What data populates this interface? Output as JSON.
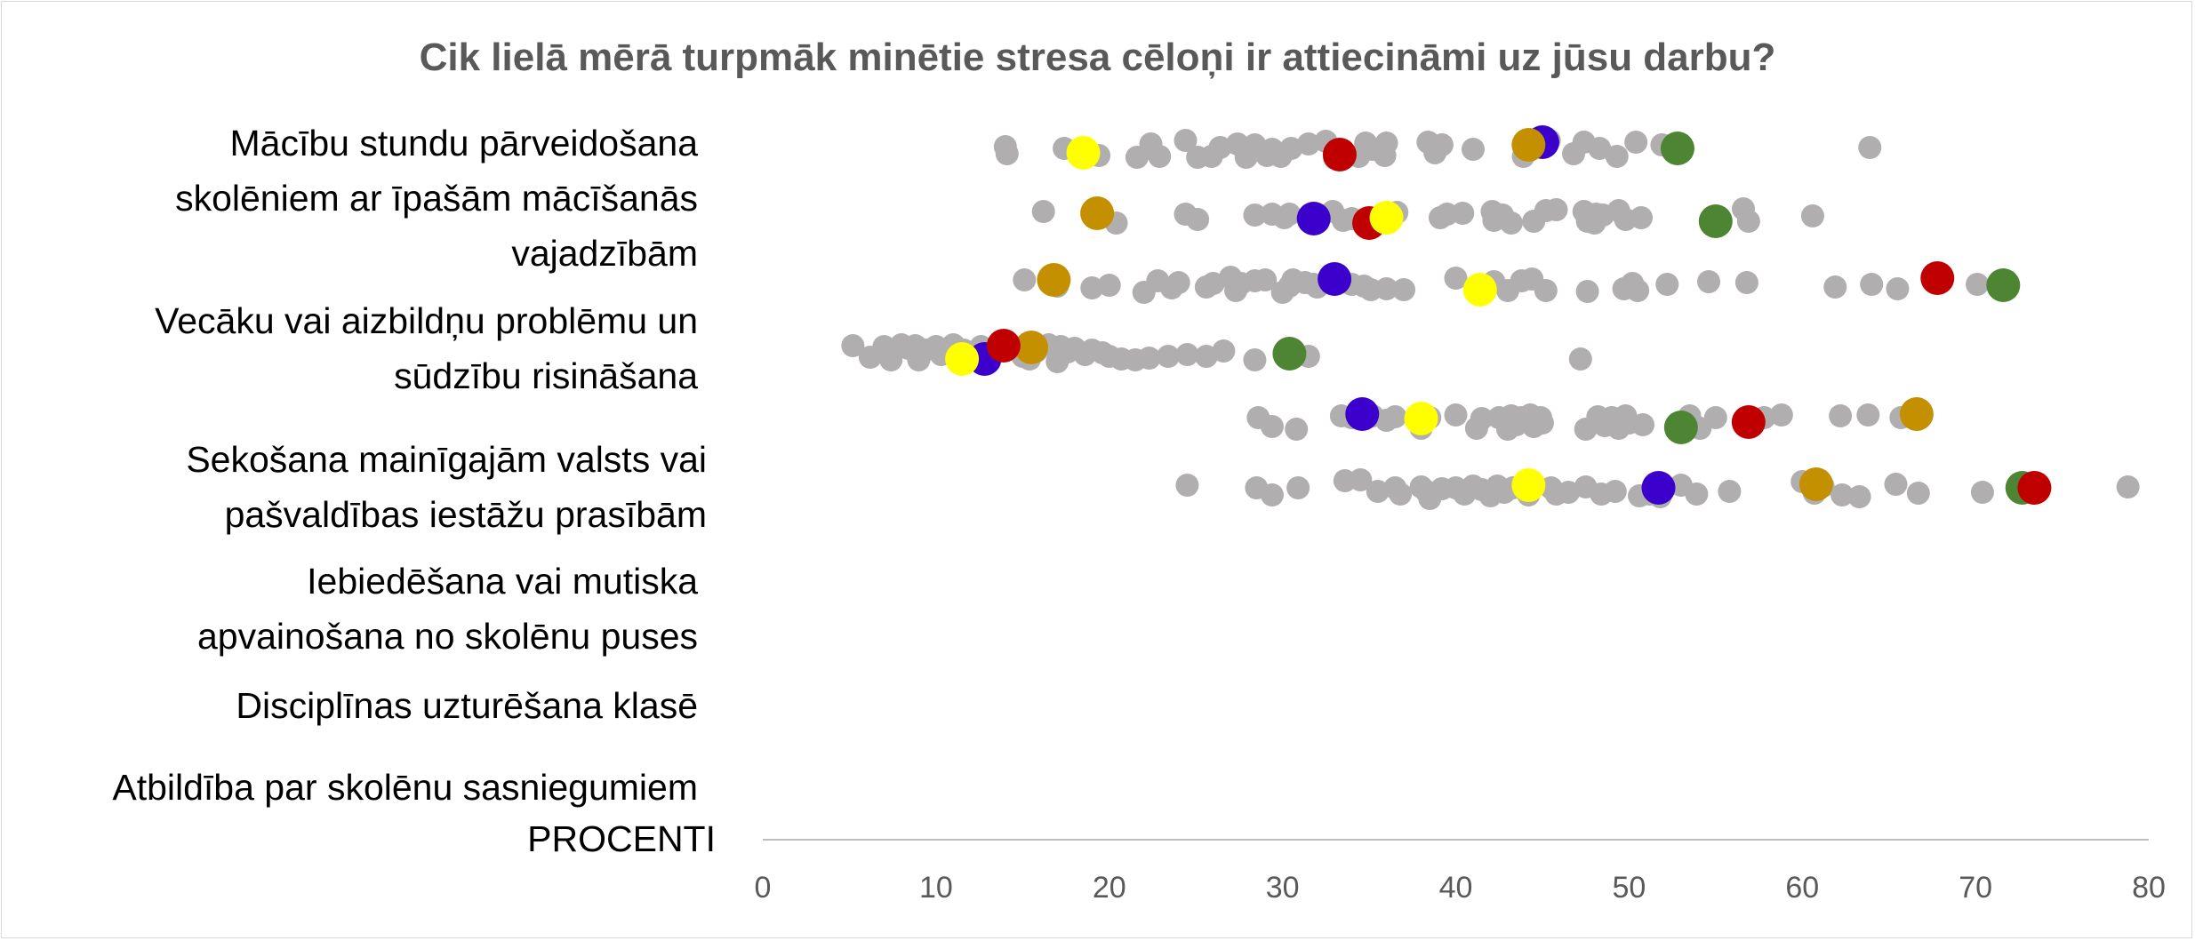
{
  "chart_data": {
    "type": "scatter",
    "title": "Cik lielā mērā turpmāk minētie stresa cēloņi ir attiecināmi uz jūsu darbu?",
    "xlabel": "PROCENTI",
    "xlim": [
      0,
      80
    ],
    "xticks": [
      "0",
      "10",
      "20",
      "30",
      "40",
      "50",
      "60",
      "70",
      "80"
    ],
    "grid": false,
    "legend": "none",
    "categories": [
      [
        "Mācību stundu pārveidošana",
        "skolēniem ar īpašām mācīšanās",
        "vajadzībām"
      ],
      [
        "Vecāku vai aizbildņu problēmu un",
        "sūdzību risināšana"
      ],
      [
        "Sekošana mainīgajām valsts vai",
        "pašvaldības iestāžu prasībām"
      ],
      [
        "Iebiedēšana vai mutiska",
        "apvainošana no skolēnu puses"
      ],
      [
        "Disciplīnas uzturēšana klasē"
      ],
      [
        "Atbildība par skolēnu sasniegumiem"
      ]
    ],
    "colors": {
      "other": "#b0aeae",
      "yellow": "#ffff00",
      "red": "#c00000",
      "blue": "#3c00cc",
      "gold": "#c49000",
      "green": "#4e8533"
    },
    "other_points": [
      [
        [
          14.0,
          165
        ],
        [
          14.1,
          173
        ],
        [
          17.4,
          167
        ],
        [
          19.4,
          175
        ],
        [
          21.6,
          177
        ],
        [
          22.4,
          162
        ],
        [
          22.9,
          176
        ],
        [
          24.4,
          158
        ],
        [
          25.1,
          177
        ],
        [
          25.9,
          176
        ],
        [
          26.4,
          166
        ],
        [
          27.4,
          162
        ],
        [
          27.9,
          177
        ],
        [
          28.4,
          163
        ],
        [
          29.1,
          175
        ],
        [
          29.4,
          168
        ],
        [
          29.9,
          176
        ],
        [
          30.5,
          167
        ],
        [
          31.5,
          162
        ],
        [
          32.5,
          159
        ],
        [
          33.0,
          178
        ],
        [
          34.4,
          176
        ],
        [
          34.8,
          161
        ],
        [
          35.2,
          168
        ],
        [
          35.9,
          175
        ],
        [
          36.0,
          161
        ],
        [
          38.4,
          160
        ],
        [
          38.8,
          172
        ],
        [
          39.2,
          163
        ],
        [
          41.0,
          168
        ],
        [
          43.9,
          176
        ],
        [
          45.4,
          158
        ],
        [
          46.8,
          173
        ],
        [
          47.4,
          160
        ],
        [
          48.3,
          167
        ],
        [
          49.3,
          176
        ],
        [
          50.4,
          160
        ],
        [
          51.9,
          163
        ],
        [
          63.9,
          166
        ]
      ],
      [
        [
          16.2,
          238
        ],
        [
          20.4,
          251
        ],
        [
          24.4,
          241
        ],
        [
          25.1,
          247
        ],
        [
          28.4,
          242
        ],
        [
          29.4,
          241
        ],
        [
          30.1,
          245
        ],
        [
          30.4,
          241
        ],
        [
          32.9,
          238
        ],
        [
          33.5,
          248
        ],
        [
          34.0,
          246
        ],
        [
          36.6,
          239
        ],
        [
          39.1,
          245
        ],
        [
          39.5,
          241
        ],
        [
          40.4,
          240
        ],
        [
          42.1,
          238
        ],
        [
          42.2,
          248
        ],
        [
          42.7,
          242
        ],
        [
          43.2,
          251
        ],
        [
          44.5,
          249
        ],
        [
          45.2,
          237
        ],
        [
          45.8,
          236
        ],
        [
          47.4,
          238
        ],
        [
          47.6,
          249
        ],
        [
          48.0,
          251
        ],
        [
          48.1,
          241
        ],
        [
          48.5,
          242
        ],
        [
          49.4,
          237
        ],
        [
          49.8,
          247
        ],
        [
          50.7,
          245
        ],
        [
          56.6,
          235
        ],
        [
          56.9,
          249
        ],
        [
          60.6,
          243
        ]
      ],
      [
        [
          15.1,
          315
        ],
        [
          17.0,
          322
        ],
        [
          19.0,
          324
        ],
        [
          20.0,
          321
        ],
        [
          22.0,
          329
        ],
        [
          22.8,
          316
        ],
        [
          23.6,
          324
        ],
        [
          24.0,
          318
        ],
        [
          25.6,
          323
        ],
        [
          26.0,
          319
        ],
        [
          27.0,
          312
        ],
        [
          27.3,
          327
        ],
        [
          27.6,
          319
        ],
        [
          28.4,
          316
        ],
        [
          29.0,
          315
        ],
        [
          30.0,
          329
        ],
        [
          30.4,
          322
        ],
        [
          30.6,
          315
        ],
        [
          31.3,
          318
        ],
        [
          31.8,
          320
        ],
        [
          32.0,
          323
        ],
        [
          34.0,
          320
        ],
        [
          34.7,
          322
        ],
        [
          35.1,
          326
        ],
        [
          36.0,
          325
        ],
        [
          37.0,
          326
        ],
        [
          40.0,
          313
        ],
        [
          42.2,
          317
        ],
        [
          43.0,
          327
        ],
        [
          43.8,
          316
        ],
        [
          44.4,
          314
        ],
        [
          45.2,
          327
        ],
        [
          47.6,
          328
        ],
        [
          49.7,
          325
        ],
        [
          50.2,
          319
        ],
        [
          50.5,
          327
        ],
        [
          52.2,
          320
        ],
        [
          54.6,
          317
        ],
        [
          56.8,
          318
        ],
        [
          61.9,
          323
        ],
        [
          64.0,
          320
        ],
        [
          65.5,
          325
        ],
        [
          70.1,
          320
        ]
      ],
      [
        [
          5.2,
          389
        ],
        [
          6.2,
          402
        ],
        [
          7.0,
          390
        ],
        [
          7.4,
          405
        ],
        [
          8.0,
          388
        ],
        [
          8.4,
          392
        ],
        [
          8.8,
          389
        ],
        [
          9.4,
          394
        ],
        [
          10.0,
          390
        ],
        [
          10.3,
          399
        ],
        [
          11.0,
          388
        ],
        [
          11.6,
          394
        ],
        [
          12.2,
          397
        ],
        [
          12.6,
          390
        ],
        [
          13.2,
          395
        ],
        [
          13.8,
          387
        ],
        [
          14.4,
          390
        ],
        [
          15.0,
          401
        ],
        [
          15.8,
          395
        ],
        [
          16.5,
          388
        ],
        [
          17.2,
          390
        ],
        [
          17.6,
          396
        ],
        [
          18.0,
          392
        ],
        [
          18.6,
          399
        ],
        [
          19.0,
          394
        ],
        [
          19.6,
          397
        ],
        [
          20.0,
          401
        ],
        [
          20.7,
          404
        ],
        [
          21.5,
          405
        ],
        [
          22.3,
          403
        ],
        [
          23.4,
          401
        ],
        [
          24.5,
          399
        ],
        [
          25.6,
          401
        ],
        [
          26.6,
          395
        ],
        [
          28.4,
          405
        ],
        [
          31.5,
          401
        ],
        [
          47.2,
          404
        ],
        [
          17.0,
          407
        ],
        [
          15.4,
          404
        ],
        [
          9.0,
          405
        ]
      ],
      [
        [
          28.6,
          470
        ],
        [
          29.4,
          480
        ],
        [
          30.8,
          483
        ],
        [
          33.4,
          468
        ],
        [
          34.0,
          470
        ],
        [
          35.2,
          468
        ],
        [
          36.0,
          473
        ],
        [
          36.5,
          469
        ],
        [
          38.0,
          482
        ],
        [
          38.5,
          470
        ],
        [
          40.0,
          467
        ],
        [
          41.2,
          482
        ],
        [
          41.5,
          471
        ],
        [
          42.5,
          470
        ],
        [
          43.0,
          483
        ],
        [
          43.2,
          468
        ],
        [
          43.5,
          478
        ],
        [
          43.8,
          470
        ],
        [
          44.3,
          467
        ],
        [
          44.5,
          480
        ],
        [
          44.9,
          470
        ],
        [
          45.0,
          476
        ],
        [
          47.5,
          483
        ],
        [
          48.2,
          469
        ],
        [
          48.6,
          479
        ],
        [
          49.0,
          470
        ],
        [
          49.4,
          482
        ],
        [
          49.8,
          468
        ],
        [
          50.0,
          476
        ],
        [
          50.8,
          478
        ],
        [
          53.5,
          468
        ],
        [
          54.1,
          482
        ],
        [
          55.0,
          470
        ],
        [
          57.8,
          470
        ],
        [
          58.8,
          467
        ],
        [
          62.2,
          468
        ],
        [
          63.8,
          467
        ],
        [
          65.7,
          470
        ]
      ],
      [
        [
          24.5,
          546
        ],
        [
          28.5,
          549
        ],
        [
          29.4,
          557
        ],
        [
          30.9,
          549
        ],
        [
          33.6,
          541
        ],
        [
          34.5,
          540
        ],
        [
          35.5,
          553
        ],
        [
          36.5,
          549
        ],
        [
          36.8,
          556
        ],
        [
          38.0,
          548
        ],
        [
          38.3,
          553
        ],
        [
          38.5,
          561
        ],
        [
          39.2,
          550
        ],
        [
          40.0,
          549
        ],
        [
          40.5,
          556
        ],
        [
          41.0,
          547
        ],
        [
          41.5,
          551
        ],
        [
          42.0,
          558
        ],
        [
          42.4,
          547
        ],
        [
          42.8,
          554
        ],
        [
          43.3,
          549
        ],
        [
          43.9,
          549
        ],
        [
          44.2,
          557
        ],
        [
          45.5,
          549
        ],
        [
          45.8,
          556
        ],
        [
          46.5,
          554
        ],
        [
          47.5,
          548
        ],
        [
          48.4,
          556
        ],
        [
          49.2,
          553
        ],
        [
          50.6,
          558
        ],
        [
          51.2,
          556
        ],
        [
          51.8,
          559
        ],
        [
          53.0,
          546
        ],
        [
          53.9,
          556
        ],
        [
          55.8,
          553
        ],
        [
          60.0,
          542
        ],
        [
          60.7,
          555
        ],
        [
          61.2,
          547
        ],
        [
          62.3,
          557
        ],
        [
          63.3,
          559
        ],
        [
          65.4,
          545
        ],
        [
          66.7,
          555
        ],
        [
          70.4,
          554
        ],
        [
          78.8,
          548
        ]
      ]
    ],
    "highlight_points": [
      {
        "color": "blue",
        "points": [
          [
            45.0,
            160
          ],
          [
            31.8,
            246
          ],
          [
            33.0,
            314
          ],
          [
            12.8,
            404
          ],
          [
            34.6,
            466
          ],
          [
            51.7,
            549
          ]
        ]
      },
      {
        "color": "gold",
        "points": [
          [
            44.2,
            163
          ],
          [
            19.3,
            240
          ],
          [
            16.8,
            315
          ],
          [
            15.5,
            391
          ],
          [
            66.6,
            466
          ],
          [
            60.8,
            545
          ]
        ]
      },
      {
        "color": "green",
        "points": [
          [
            52.8,
            167
          ],
          [
            55.0,
            249
          ],
          [
            71.6,
            321
          ],
          [
            30.4,
            398
          ],
          [
            53.0,
            481
          ],
          [
            72.7,
            549
          ]
        ]
      },
      {
        "color": "red",
        "points": [
          [
            33.3,
            174
          ],
          [
            35.0,
            251
          ],
          [
            67.8,
            313
          ],
          [
            13.9,
            389
          ],
          [
            56.9,
            475
          ],
          [
            73.4,
            549
          ]
        ]
      },
      {
        "color": "yellow",
        "points": [
          [
            18.5,
            172
          ],
          [
            36.0,
            245
          ],
          [
            41.4,
            326
          ],
          [
            11.5,
            404
          ],
          [
            38.0,
            471
          ],
          [
            44.2,
            546
          ]
        ]
      }
    ]
  }
}
